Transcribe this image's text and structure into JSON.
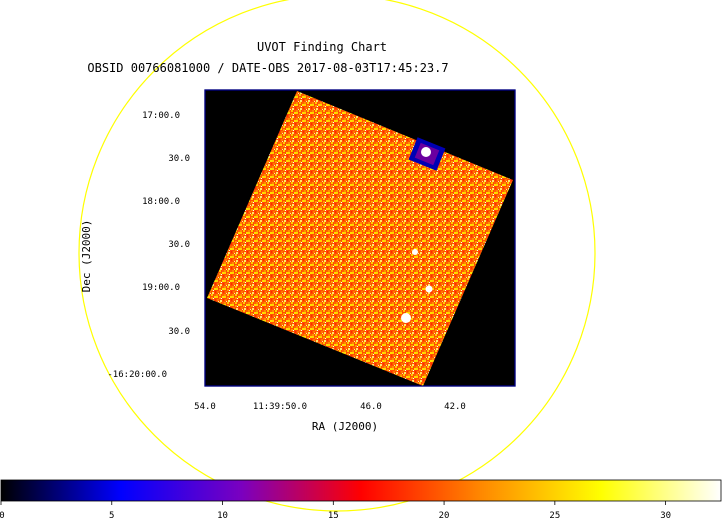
{
  "title": "UVOT Finding Chart",
  "subtitle": "OBSID 00766081000 / DATE-OBS 2017-08-03T17:45:23.7",
  "axes": {
    "xlabel": "RA (J2000)",
    "ylabel": "Dec (J2000)",
    "ra_ticks": [
      "54.0",
      "11:39:50.0",
      "46.0",
      "42.0"
    ],
    "dec_ticks": [
      "17:00.0",
      "30.0",
      "18:00.0",
      "30.0",
      "19:00.0",
      "30.0",
      "-16:20:00.0"
    ]
  },
  "colorbar": {
    "ticks": [
      "0",
      "5",
      "10",
      "15",
      "20",
      "25",
      "30"
    ],
    "range": [
      0,
      32.5
    ],
    "stops": [
      "#000000",
      "#0000ff",
      "#7a00c0",
      "#ff0000",
      "#ff8800",
      "#ffff00",
      "#ffffff"
    ]
  },
  "colors": {
    "circle": "#ffff00",
    "frame": "#000080",
    "background": "#000000"
  }
}
